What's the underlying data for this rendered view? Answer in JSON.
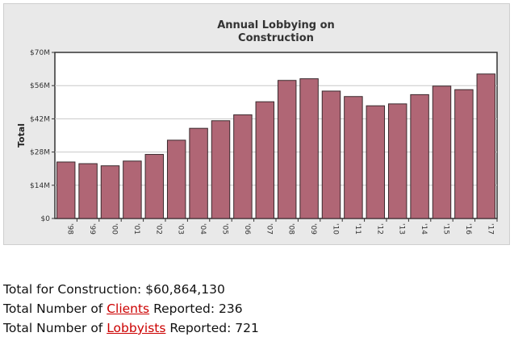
{
  "chart_data": {
    "type": "bar",
    "title": "Annual Lobbying on Construction",
    "title_lines": [
      "Annual Lobbying on",
      "Construction"
    ],
    "ylabel": "Total",
    "xlabel": "",
    "categories": [
      "'98",
      "'99",
      "'00",
      "'01",
      "'02",
      "'03",
      "'04",
      "'05",
      "'06",
      "'07",
      "'08",
      "'09",
      "'10",
      "'11",
      "'12",
      "'13",
      "'14",
      "'15",
      "'16",
      "'17"
    ],
    "values": [
      23.8,
      23.1,
      22.2,
      24.2,
      27.0,
      33.0,
      38.0,
      41.2,
      43.7,
      49.2,
      58.2,
      58.9,
      53.7,
      51.4,
      47.5,
      48.3,
      52.2,
      55.8,
      54.3,
      60.9
    ],
    "ylim": [
      0,
      70
    ],
    "yticks": [
      0,
      14,
      28,
      42,
      56,
      70
    ],
    "ytick_labels": [
      "$0",
      "$14M",
      "$28M",
      "$42M",
      "$56M",
      "$70M"
    ],
    "grid": true,
    "colors": {
      "bar": "#b06675",
      "bar_stroke": "#3a2a2e",
      "panel_bg": "#e9e9e9",
      "plot_bg": "#ffffff",
      "grid": "#c8c8c8"
    }
  },
  "summary": {
    "total_line": "Total for Construction: $60,864,130",
    "clients_prefix": "Total Number of ",
    "clients_link": "Clients",
    "clients_suffix": " Reported: 236",
    "lobbyists_prefix": "Total Number of ",
    "lobbyists_link": "Lobbyists",
    "lobbyists_suffix": " Reported: 721"
  },
  "colors": {
    "link": "#cc0000",
    "text": "#111111"
  }
}
